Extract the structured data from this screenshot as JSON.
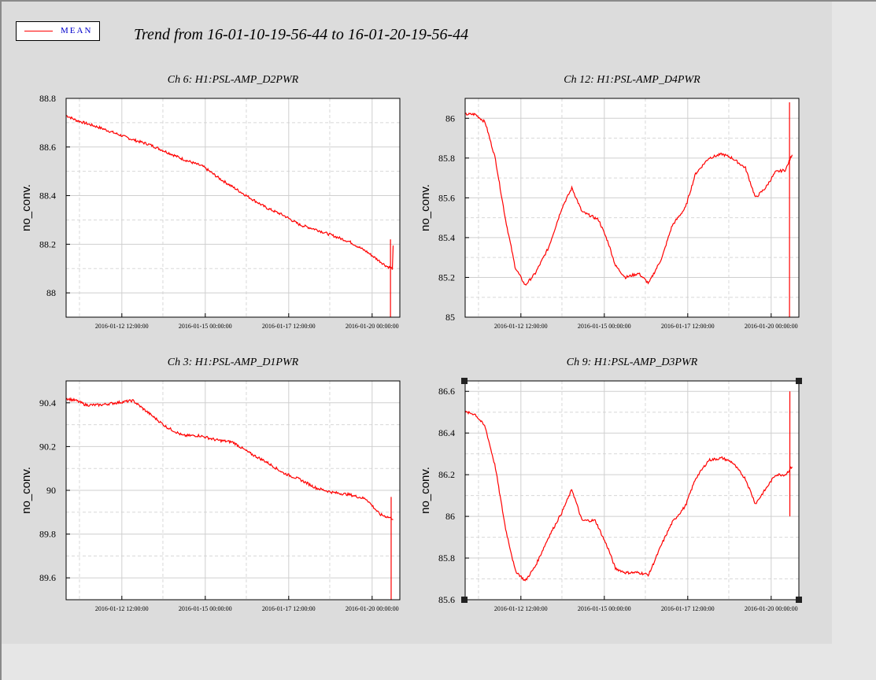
{
  "title": "Trend from 16-01-10-19-56-44 to 16-01-20-19-56-44",
  "legend": {
    "label": "MEAN",
    "color": "#ff0000"
  },
  "colors": {
    "line": "#ff0000",
    "background": "#dcdcdc",
    "plot_bg": "#ffffff"
  },
  "chart_data": [
    {
      "type": "line",
      "title": "Ch 6: H1:PSL-AMP_D2PWR",
      "ylabel": "no_conv.",
      "xlabel": "",
      "ylim": [
        87.9,
        88.8
      ],
      "yticks": [
        88,
        88.2,
        88.4,
        88.6,
        88.8
      ],
      "ytick_labels": [
        "88",
        "88.2",
        "88.4",
        "88.6",
        "88.8"
      ],
      "xticks": [
        "2016-01-12 12:00:00",
        "2016-01-15 00:00:00",
        "2016-01-17 12:00:00",
        "2016-01-20 00:00:00"
      ],
      "xlim_days": [
        0,
        10
      ],
      "grid": true,
      "series": [
        {
          "name": "MEAN",
          "x": [
            0,
            0.3,
            1.0,
            2.0,
            2.5,
            3.0,
            3.5,
            4.1,
            4.3,
            4.6,
            5.4,
            6.0,
            6.5,
            7.0,
            7.5,
            8.5,
            9.0,
            9.6,
            9.78,
            9.8
          ],
          "y": [
            88.73,
            88.71,
            88.68,
            88.63,
            88.61,
            88.58,
            88.55,
            88.52,
            88.5,
            88.47,
            88.4,
            88.35,
            88.32,
            88.28,
            88.26,
            88.21,
            88.17,
            88.11,
            88.1,
            88.19
          ],
          "spikes": [
            {
              "x": 9.72,
              "y_min": 87.9,
              "y_max": 88.22
            }
          ]
        }
      ]
    },
    {
      "type": "line",
      "title": "Ch 12: H1:PSL-AMP_D4PWR",
      "ylabel": "no_conv.",
      "xlabel": "",
      "ylim": [
        85,
        86.1
      ],
      "yticks": [
        85,
        85.2,
        85.4,
        85.6,
        85.8,
        86
      ],
      "ytick_labels": [
        "85",
        "85.2",
        "85.4",
        "85.6",
        "85.8",
        "86"
      ],
      "xticks": [
        "2016-01-12 12:00:00",
        "2016-01-15 00:00:00",
        "2016-01-17 12:00:00",
        "2016-01-20 00:00:00"
      ],
      "xlim_days": [
        0,
        10
      ],
      "grid": true,
      "series": [
        {
          "name": "MEAN",
          "x": [
            0,
            0.3,
            0.6,
            0.9,
            1.2,
            1.5,
            1.8,
            2.1,
            2.5,
            2.9,
            3.2,
            3.5,
            4.0,
            4.3,
            4.5,
            4.8,
            5.2,
            5.5,
            5.9,
            6.2,
            6.6,
            6.9,
            7.3,
            7.7,
            8.0,
            8.4,
            8.7,
            9.0,
            9.3,
            9.6,
            9.8
          ],
          "y": [
            86.02,
            86.02,
            85.98,
            85.8,
            85.5,
            85.25,
            85.16,
            85.22,
            85.35,
            85.55,
            85.65,
            85.53,
            85.49,
            85.37,
            85.26,
            85.2,
            85.22,
            85.17,
            85.3,
            85.46,
            85.55,
            85.72,
            85.8,
            85.82,
            85.8,
            85.75,
            85.6,
            85.65,
            85.73,
            85.74,
            85.82
          ],
          "spikes": [
            {
              "x": 9.72,
              "y_min": 85.0,
              "y_max": 86.08
            }
          ]
        }
      ]
    },
    {
      "type": "line",
      "title": "Ch 3: H1:PSL-AMP_D1PWR",
      "ylabel": "no_conv.",
      "xlabel": "",
      "ylim": [
        89.5,
        90.5
      ],
      "yticks": [
        89.6,
        89.8,
        90,
        90.2,
        90.4
      ],
      "ytick_labels": [
        "89.6",
        "89.8",
        "90",
        "90.2",
        "90.4"
      ],
      "xticks": [
        "2016-01-12 12:00:00",
        "2016-01-15 00:00:00",
        "2016-01-17 12:00:00",
        "2016-01-20 00:00:00"
      ],
      "xlim_days": [
        0,
        10
      ],
      "grid": true,
      "series": [
        {
          "name": "MEAN",
          "x": [
            0,
            0.3,
            0.6,
            1.0,
            1.5,
            2.0,
            2.5,
            3.0,
            3.5,
            4.0,
            4.5,
            5.0,
            5.5,
            6.0,
            6.5,
            7.0,
            7.5,
            8.0,
            8.5,
            9.0,
            9.4,
            9.8
          ],
          "y": [
            90.42,
            90.41,
            90.39,
            90.39,
            90.4,
            90.41,
            90.35,
            90.29,
            90.25,
            90.25,
            90.23,
            90.22,
            90.17,
            90.13,
            90.08,
            90.05,
            90.01,
            89.99,
            89.98,
            89.96,
            89.89,
            89.87
          ],
          "spikes": [
            {
              "x": 9.74,
              "y_min": 89.5,
              "y_max": 89.97
            }
          ]
        }
      ]
    },
    {
      "type": "line",
      "title": "Ch 9: H1:PSL-AMP_D3PWR",
      "ylabel": "no_conv.",
      "xlabel": "",
      "ylim": [
        85.6,
        86.65
      ],
      "yticks": [
        85.6,
        85.8,
        86,
        86.2,
        86.4,
        86.6
      ],
      "ytick_labels": [
        "85.6",
        "85.8",
        "86",
        "86.2",
        "86.4",
        "86.6"
      ],
      "xticks": [
        "2016-01-12 12:00:00",
        "2016-01-15 00:00:00",
        "2016-01-17 12:00:00",
        "2016-01-20 00:00:00"
      ],
      "xlim_days": [
        0,
        10
      ],
      "grid": true,
      "series": [
        {
          "name": "MEAN",
          "x": [
            0,
            0.3,
            0.6,
            0.9,
            1.2,
            1.5,
            1.8,
            2.1,
            2.5,
            2.9,
            3.2,
            3.5,
            3.9,
            4.3,
            4.5,
            4.8,
            5.2,
            5.5,
            5.9,
            6.2,
            6.6,
            6.9,
            7.3,
            7.7,
            8.0,
            8.4,
            8.7,
            9.0,
            9.3,
            9.6,
            9.8
          ],
          "y": [
            86.5,
            86.49,
            86.43,
            86.24,
            85.95,
            85.74,
            85.69,
            85.76,
            85.9,
            86.02,
            86.13,
            85.98,
            85.98,
            85.84,
            85.75,
            85.73,
            85.73,
            85.72,
            85.87,
            85.97,
            86.05,
            86.18,
            86.27,
            86.28,
            86.26,
            86.18,
            86.06,
            86.13,
            86.2,
            86.2,
            86.24
          ],
          "spikes": [
            {
              "x": 9.73,
              "y_min": 86.0,
              "y_max": 86.6
            }
          ]
        }
      ]
    }
  ]
}
